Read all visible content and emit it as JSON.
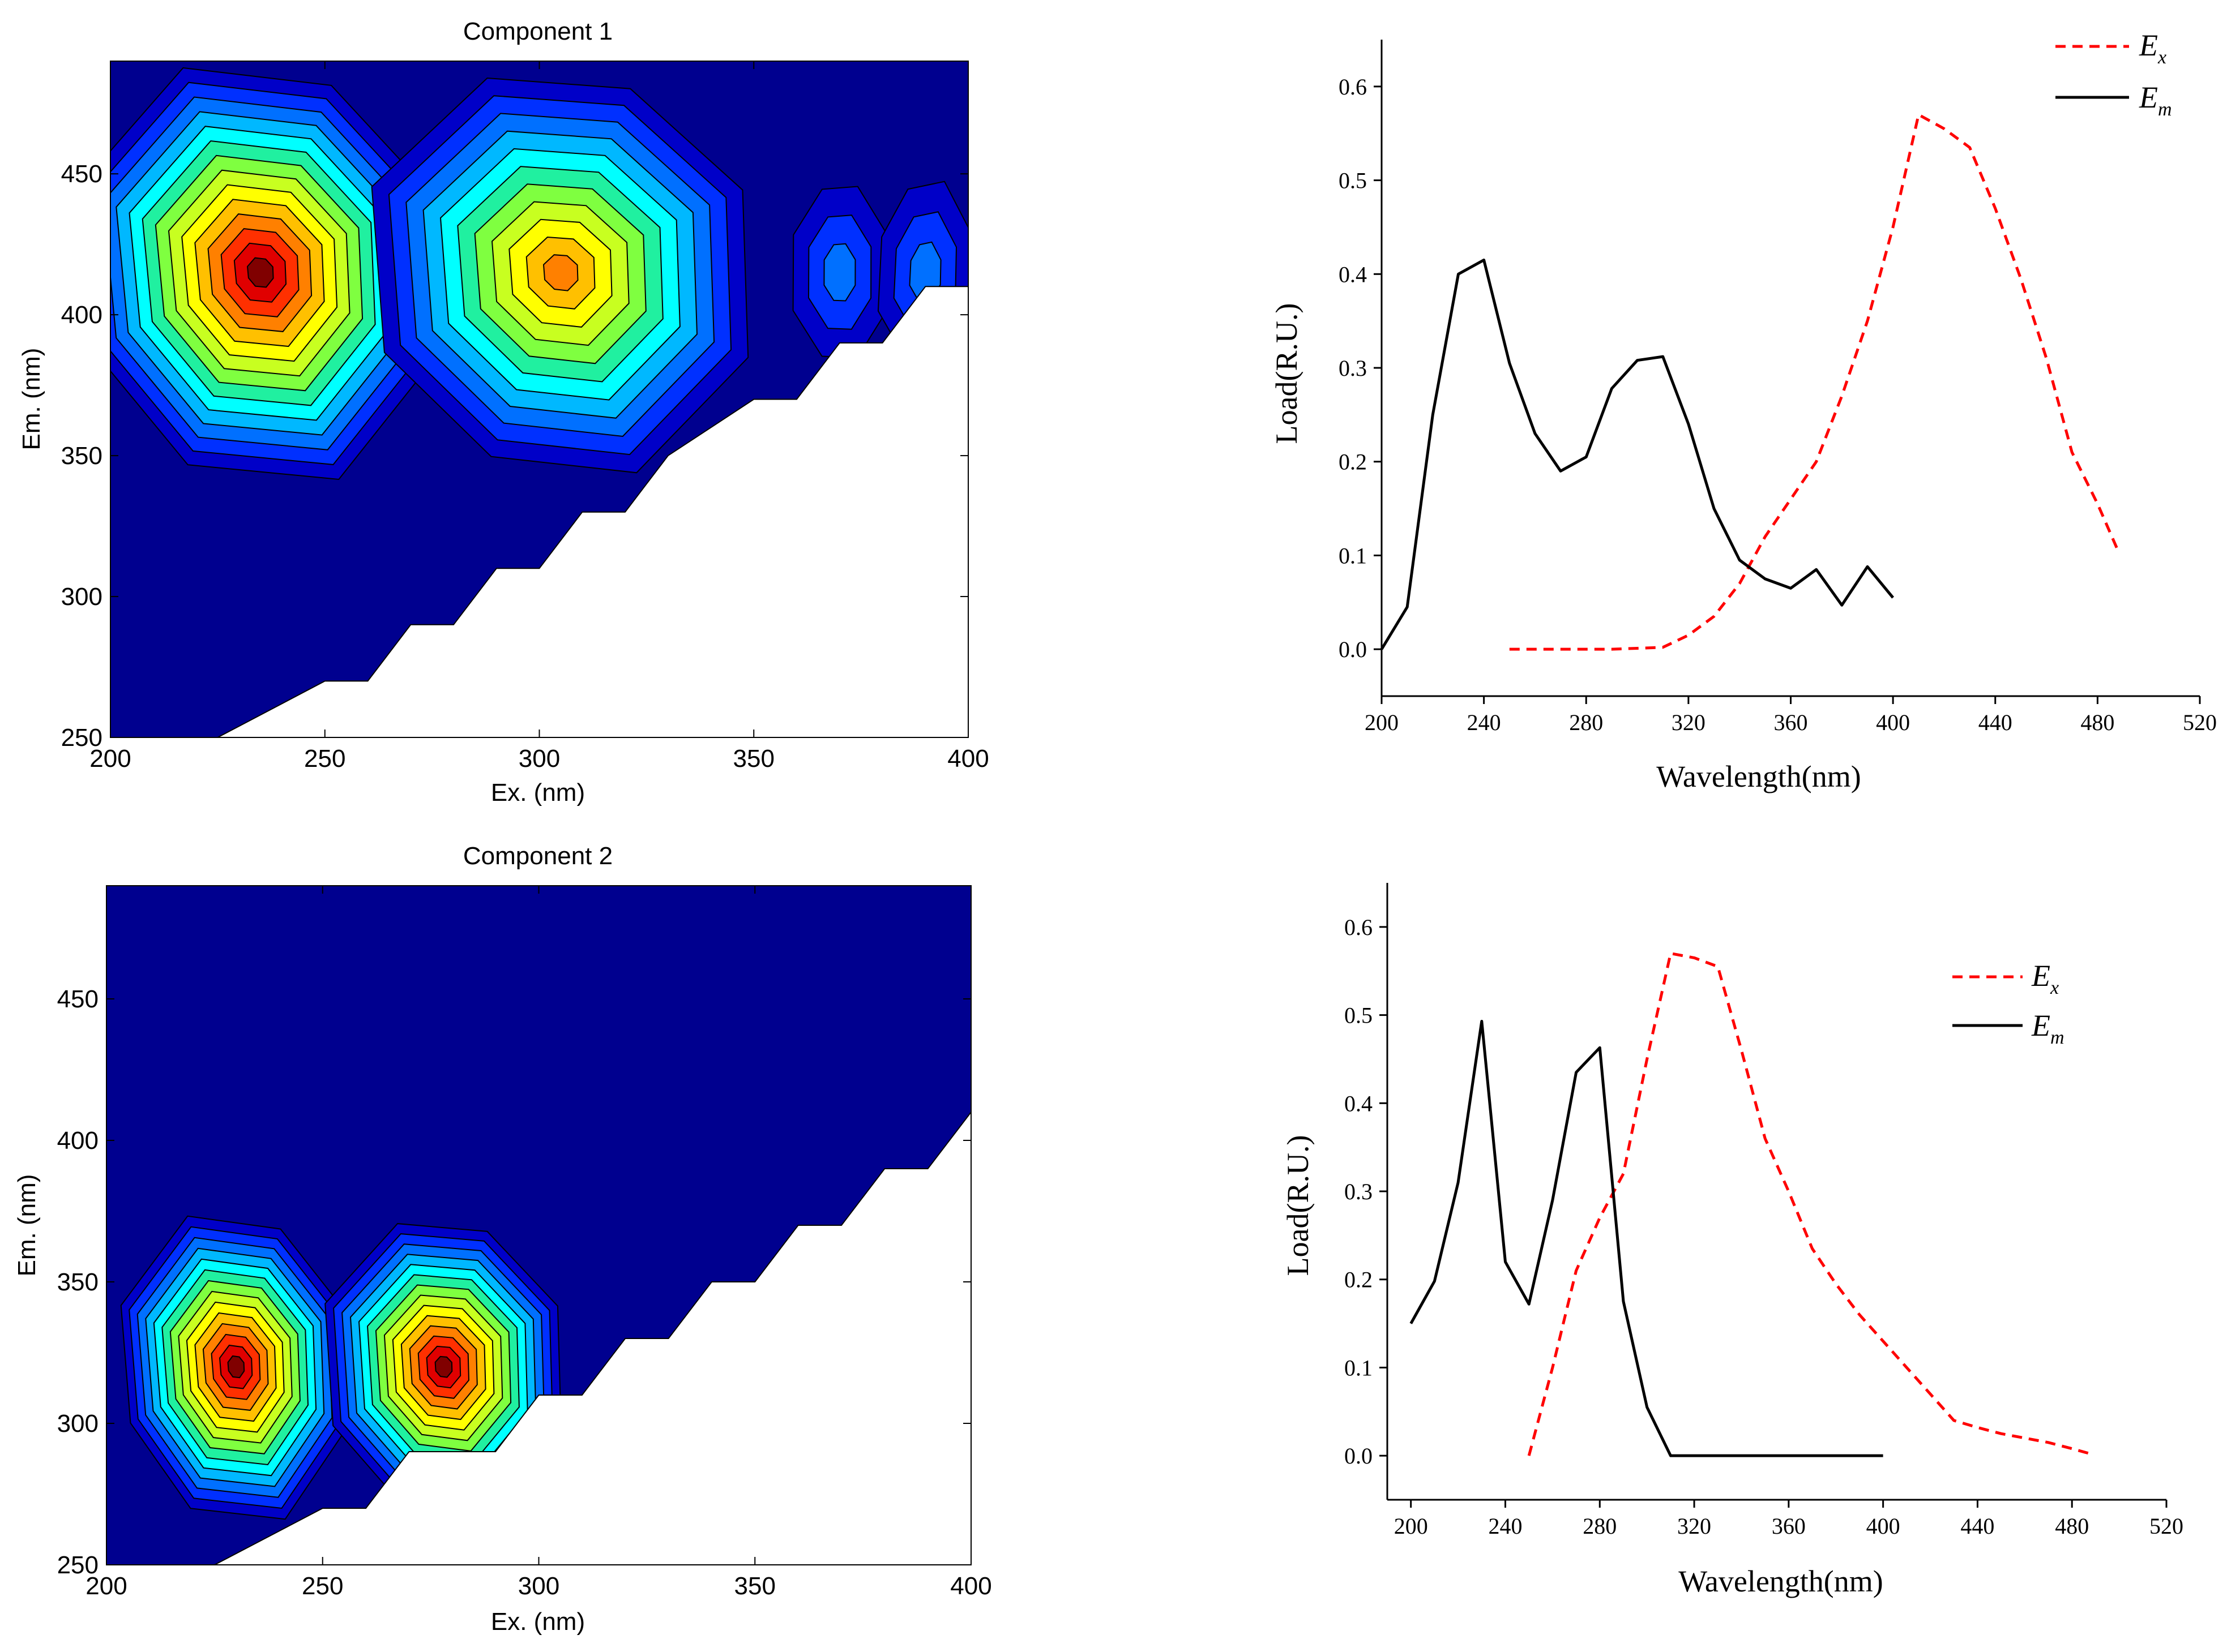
{
  "figure_colors": {
    "contour_levels": [
      "#00008f",
      "#0000c8",
      "#0030ff",
      "#0070ff",
      "#00b8ff",
      "#00ffff",
      "#20f0a0",
      "#7fff40",
      "#c8ff20",
      "#ffff00",
      "#ffc000",
      "#ff8000",
      "#ff3000",
      "#e00000",
      "#800000"
    ],
    "excitation_line": "#ff0000",
    "emission_line": "#000000"
  },
  "chart_data": [
    {
      "type": "heatmap",
      "title": "Component 1",
      "xlabel": "Ex. (nm)",
      "ylabel": "Em. (nm)",
      "xlim": [
        200,
        400
      ],
      "ylim": [
        250,
        490
      ],
      "xticks": [
        200,
        250,
        300,
        350,
        400
      ],
      "yticks": [
        250,
        300,
        350,
        400,
        450
      ],
      "peaks": [
        {
          "ex": 235,
          "em": 415,
          "relative_intensity": 1.0
        },
        {
          "ex": 305,
          "em": 415,
          "relative_intensity": 0.75
        },
        {
          "ex": 370,
          "em": 415,
          "relative_intensity": 0.2
        },
        {
          "ex": 390,
          "em": 415,
          "relative_intensity": 0.2
        }
      ],
      "unmeasured_edge": [
        [
          225,
          250
        ],
        [
          250,
          270
        ],
        [
          260,
          270
        ],
        [
          270,
          290
        ],
        [
          280,
          290
        ],
        [
          290,
          310
        ],
        [
          300,
          310
        ],
        [
          310,
          330
        ],
        [
          320,
          330
        ],
        [
          330,
          350
        ],
        [
          350,
          370
        ],
        [
          360,
          370
        ],
        [
          370,
          390
        ],
        [
          380,
          390
        ],
        [
          390,
          410
        ],
        [
          400,
          410
        ]
      ]
    },
    {
      "type": "line",
      "ylabel": "Load(R.U.)",
      "xlabel": "Wavelength(nm)",
      "xlim": [
        200,
        520
      ],
      "ylim": [
        -0.05,
        0.65
      ],
      "xticks": [
        200,
        240,
        280,
        320,
        360,
        400,
        440,
        480,
        520
      ],
      "yticks": [
        "0.0",
        "0.1",
        "0.2",
        "0.3",
        "0.4",
        "0.5",
        "0.6"
      ],
      "legend_position": "top-right",
      "legend": [
        {
          "base": "E",
          "sub": "x",
          "style": "dashed"
        },
        {
          "base": "E",
          "sub": "m",
          "style": "solid"
        }
      ],
      "series": [
        {
          "name": "Ex",
          "x": [
            250,
            260,
            270,
            280,
            290,
            300,
            310,
            320,
            330,
            340,
            350,
            360,
            370,
            380,
            390,
            400,
            410,
            420,
            430,
            440,
            450,
            460,
            470,
            480,
            488
          ],
          "y": [
            0.0,
            0.0,
            0.0,
            0.0,
            0.0,
            0.001,
            0.002,
            0.015,
            0.035,
            0.07,
            0.12,
            0.16,
            0.2,
            0.27,
            0.35,
            0.45,
            0.57,
            0.555,
            0.535,
            0.47,
            0.395,
            0.31,
            0.21,
            0.155,
            0.105
          ]
        },
        {
          "name": "Em",
          "x": [
            200,
            210,
            220,
            230,
            240,
            250,
            260,
            270,
            280,
            290,
            300,
            310,
            320,
            330,
            340,
            350,
            360,
            370,
            380,
            390,
            400
          ],
          "y": [
            0.0,
            0.045,
            0.25,
            0.4,
            0.415,
            0.305,
            0.23,
            0.19,
            0.205,
            0.278,
            0.308,
            0.312,
            0.24,
            0.15,
            0.095,
            0.075,
            0.065,
            0.085,
            0.047,
            0.088,
            0.055
          ]
        }
      ]
    },
    {
      "type": "heatmap",
      "title": "Component 2",
      "xlabel": "Ex. (nm)",
      "ylabel": "Em. (nm)",
      "xlim": [
        200,
        400
      ],
      "ylim": [
        250,
        490
      ],
      "xticks": [
        200,
        250,
        300,
        350,
        400
      ],
      "yticks": [
        250,
        300,
        350,
        400,
        450
      ],
      "peaks": [
        {
          "ex": 230,
          "em": 320,
          "relative_intensity": 1.0
        },
        {
          "ex": 278,
          "em": 320,
          "relative_intensity": 1.0
        }
      ],
      "unmeasured_edge": [
        [
          225,
          250
        ],
        [
          250,
          270
        ],
        [
          260,
          270
        ],
        [
          270,
          290
        ],
        [
          290,
          290
        ],
        [
          300,
          310
        ],
        [
          310,
          310
        ],
        [
          320,
          330
        ],
        [
          330,
          330
        ],
        [
          340,
          350
        ],
        [
          350,
          350
        ],
        [
          360,
          370
        ],
        [
          370,
          370
        ],
        [
          380,
          390
        ],
        [
          390,
          390
        ],
        [
          400,
          410
        ]
      ]
    },
    {
      "type": "line",
      "ylabel": "Load(R.U.)",
      "xlabel": "Wavelength(nm)",
      "xlim": [
        190,
        520
      ],
      "ylim": [
        -0.05,
        0.65
      ],
      "xticks": [
        200,
        240,
        280,
        320,
        360,
        400,
        440,
        480,
        520
      ],
      "yticks": [
        "0.0",
        "0.1",
        "0.2",
        "0.3",
        "0.4",
        "0.5",
        "0.6"
      ],
      "legend_position": "top-right",
      "legend": [
        {
          "base": "E",
          "sub": "x",
          "style": "dashed"
        },
        {
          "base": "E",
          "sub": "m",
          "style": "solid"
        }
      ],
      "series": [
        {
          "name": "Ex",
          "x": [
            250,
            260,
            270,
            280,
            290,
            300,
            310,
            320,
            330,
            340,
            350,
            360,
            370,
            380,
            390,
            400,
            410,
            420,
            430,
            440,
            450,
            460,
            470,
            480,
            488
          ],
          "y": [
            0.0,
            0.1,
            0.21,
            0.27,
            0.32,
            0.45,
            0.57,
            0.565,
            0.555,
            0.46,
            0.36,
            0.3,
            0.235,
            0.195,
            0.16,
            0.13,
            0.1,
            0.07,
            0.04,
            0.032,
            0.025,
            0.02,
            0.015,
            0.008,
            0.002
          ]
        },
        {
          "name": "Em",
          "x": [
            200,
            210,
            220,
            230,
            240,
            250,
            260,
            270,
            280,
            290,
            300,
            310,
            320,
            330,
            340,
            350,
            360,
            370,
            380,
            390,
            400
          ],
          "y": [
            0.15,
            0.198,
            0.31,
            0.493,
            0.22,
            0.172,
            0.29,
            0.435,
            0.463,
            0.175,
            0.055,
            0.0,
            0.0,
            0.0,
            0.0,
            0.0,
            0.0,
            0.0,
            0.0,
            0.0,
            0.0
          ]
        }
      ]
    }
  ]
}
